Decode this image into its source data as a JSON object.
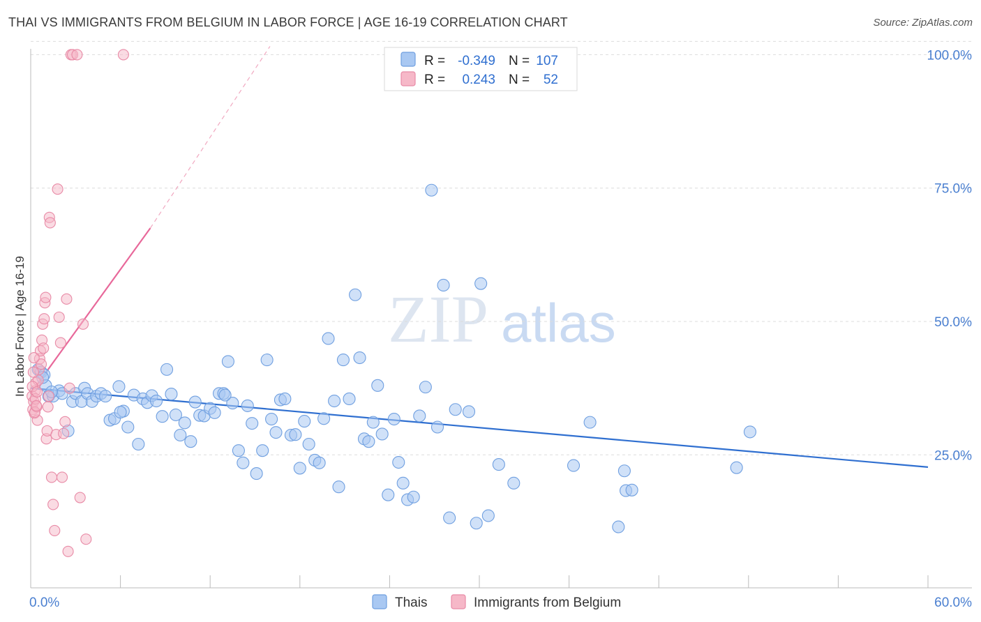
{
  "header": {
    "title": "THAI VS IMMIGRANTS FROM BELGIUM IN LABOR FORCE | AGE 16-19 CORRELATION CHART",
    "source": "Source: ZipAtlas.com"
  },
  "watermark": {
    "zip": "ZIP",
    "atlas": "atlas"
  },
  "legend": {
    "r_label": "R =",
    "n_label": "N =",
    "rows": [
      {
        "r": "-0.349",
        "n": "107",
        "color": "#a9c8f2"
      },
      {
        "r": "0.243",
        "n": "52",
        "color": "#f6b8c8"
      }
    ]
  },
  "chart_data": {
    "type": "scatter",
    "title": "THAI VS IMMIGRANTS FROM BELGIUM IN LABOR FORCE | AGE 16-19 CORRELATION CHART",
    "ylabel": "In Labor Force | Age 16-19",
    "xlabel": "",
    "xlim": [
      0,
      60
    ],
    "ylim": [
      0,
      105
    ],
    "x_tick_labels": [
      "0.0%",
      "60.0%"
    ],
    "y_ticks": [
      25,
      50,
      75,
      100
    ],
    "y_tick_labels": [
      "25.0%",
      "50.0%",
      "75.0%",
      "100.0%"
    ],
    "grid": true,
    "legend_position": "top-center",
    "series": [
      {
        "name": "Thais",
        "color": "#a9c8f2",
        "edge": "#6f9fe0",
        "line_color": "#2f6fd0",
        "trend": {
          "x": [
            0,
            60
          ],
          "y": [
            37.5,
            22.7
          ]
        },
        "points": [
          [
            0.5,
            41
          ],
          [
            0.7,
            40.5
          ],
          [
            0.9,
            40
          ],
          [
            1.0,
            38
          ],
          [
            1.2,
            36
          ],
          [
            1.5,
            36
          ],
          [
            1.9,
            37
          ],
          [
            2.1,
            36.5
          ],
          [
            2.5,
            29.5
          ],
          [
            2.8,
            35
          ],
          [
            3.0,
            36.5
          ],
          [
            3.4,
            35
          ],
          [
            3.6,
            37.5
          ],
          [
            3.8,
            36.5
          ],
          [
            4.1,
            35
          ],
          [
            4.4,
            36
          ],
          [
            4.7,
            36.5
          ],
          [
            5.0,
            36
          ],
          [
            5.3,
            31.5
          ],
          [
            5.6,
            31.8
          ],
          [
            5.9,
            37.8
          ],
          [
            6.2,
            33.2
          ],
          [
            6.5,
            30.2
          ],
          [
            6.9,
            36.2
          ],
          [
            7.2,
            27
          ],
          [
            7.5,
            35.5
          ],
          [
            7.8,
            34.8
          ],
          [
            8.1,
            36.1
          ],
          [
            8.4,
            35.1
          ],
          [
            8.8,
            32.2
          ],
          [
            9.1,
            41
          ],
          [
            9.4,
            36.4
          ],
          [
            9.7,
            32.5
          ],
          [
            10.0,
            28.7
          ],
          [
            10.3,
            31
          ],
          [
            10.7,
            27.5
          ],
          [
            11.0,
            34.9
          ],
          [
            11.3,
            32.4
          ],
          [
            11.6,
            32.3
          ],
          [
            12.0,
            33.7
          ],
          [
            12.3,
            32.9
          ],
          [
            12.6,
            36.5
          ],
          [
            12.9,
            36.5
          ],
          [
            13.2,
            42.5
          ],
          [
            13.5,
            34.7
          ],
          [
            13.9,
            25.8
          ],
          [
            14.2,
            23.5
          ],
          [
            14.5,
            34.2
          ],
          [
            14.8,
            30.9
          ],
          [
            15.1,
            21.5
          ],
          [
            15.5,
            25.8
          ],
          [
            15.8,
            42.8
          ],
          [
            16.1,
            31.7
          ],
          [
            16.4,
            29.2
          ],
          [
            16.7,
            35.3
          ],
          [
            17.0,
            35.5
          ],
          [
            17.4,
            28.7
          ],
          [
            17.7,
            28.8
          ],
          [
            18.0,
            22.5
          ],
          [
            18.3,
            31.3
          ],
          [
            18.6,
            27
          ],
          [
            19.0,
            24
          ],
          [
            19.3,
            23.5
          ],
          [
            19.6,
            31.8
          ],
          [
            19.9,
            46.8
          ],
          [
            20.3,
            35.1
          ],
          [
            20.6,
            19
          ],
          [
            20.9,
            42.8
          ],
          [
            21.3,
            35.5
          ],
          [
            21.7,
            55
          ],
          [
            22.0,
            43.2
          ],
          [
            22.3,
            28
          ],
          [
            22.6,
            27.5
          ],
          [
            22.9,
            31.1
          ],
          [
            23.2,
            38
          ],
          [
            23.5,
            28.9
          ],
          [
            23.9,
            17.5
          ],
          [
            24.3,
            31.7
          ],
          [
            24.6,
            23.6
          ],
          [
            24.9,
            19.7
          ],
          [
            25.2,
            16.6
          ],
          [
            25.6,
            17.1
          ],
          [
            26.0,
            32.3
          ],
          [
            26.4,
            37.7
          ],
          [
            26.8,
            74.6
          ],
          [
            27.2,
            30.2
          ],
          [
            27.6,
            56.8
          ],
          [
            28.0,
            13.2
          ],
          [
            28.4,
            33.5
          ],
          [
            29.3,
            33.1
          ],
          [
            29.8,
            12.2
          ],
          [
            30.1,
            57.1
          ],
          [
            30.6,
            13.6
          ],
          [
            31.3,
            23.2
          ],
          [
            32.3,
            19.7
          ],
          [
            36.3,
            23
          ],
          [
            37.4,
            31.1
          ],
          [
            39.7,
            22
          ],
          [
            39.8,
            18.3
          ],
          [
            40.2,
            18.4
          ],
          [
            39.3,
            11.5
          ],
          [
            47.2,
            22.6
          ],
          [
            48.1,
            29.3
          ],
          [
            0.8,
            39.5
          ],
          [
            1.4,
            36.8
          ],
          [
            6.0,
            33.0
          ],
          [
            13.0,
            36.2
          ]
        ]
      },
      {
        "name": "Immigrants from Belgium",
        "color": "#f6b8c8",
        "edge": "#e88aa6",
        "line_color": "#e8689a",
        "trend_solid": {
          "x": [
            0,
            8
          ],
          "y": [
            36.5,
            67.5
          ]
        },
        "trend_dashed": {
          "x": [
            8,
            16
          ],
          "y": [
            67.5,
            100
          ]
        },
        "points": [
          [
            0.1,
            36
          ],
          [
            0.15,
            33.5
          ],
          [
            0.2,
            35
          ],
          [
            0.25,
            32.8
          ],
          [
            0.3,
            37
          ],
          [
            0.35,
            38.5
          ],
          [
            0.4,
            34
          ],
          [
            0.45,
            31.5
          ],
          [
            0.5,
            39
          ],
          [
            0.55,
            41
          ],
          [
            0.6,
            43
          ],
          [
            0.65,
            44.5
          ],
          [
            0.7,
            42
          ],
          [
            0.75,
            46.5
          ],
          [
            0.8,
            49.5
          ],
          [
            0.85,
            45
          ],
          [
            0.9,
            50.5
          ],
          [
            0.95,
            53.5
          ],
          [
            1.0,
            54.5
          ],
          [
            1.05,
            28
          ],
          [
            1.1,
            29.5
          ],
          [
            1.15,
            34
          ],
          [
            1.2,
            36
          ],
          [
            1.25,
            69.5
          ],
          [
            1.3,
            68.5
          ],
          [
            1.4,
            20.8
          ],
          [
            1.5,
            15.7
          ],
          [
            1.6,
            10.8
          ],
          [
            1.7,
            28.8
          ],
          [
            1.8,
            74.8
          ],
          [
            1.9,
            50.8
          ],
          [
            2.0,
            46
          ],
          [
            2.1,
            20.8
          ],
          [
            2.2,
            29
          ],
          [
            2.3,
            31.2
          ],
          [
            2.4,
            54.2
          ],
          [
            2.5,
            6.9
          ],
          [
            2.6,
            37.5
          ],
          [
            2.7,
            100
          ],
          [
            2.8,
            100
          ],
          [
            3.1,
            100
          ],
          [
            3.3,
            17
          ],
          [
            3.5,
            49.5
          ],
          [
            3.7,
            9.2
          ],
          [
            6.2,
            100
          ],
          [
            0.12,
            37.8
          ],
          [
            0.18,
            40.5
          ],
          [
            0.22,
            43.2
          ],
          [
            0.28,
            33
          ],
          [
            0.32,
            35.5
          ],
          [
            0.38,
            34.2
          ],
          [
            0.42,
            36.8
          ]
        ]
      }
    ]
  }
}
